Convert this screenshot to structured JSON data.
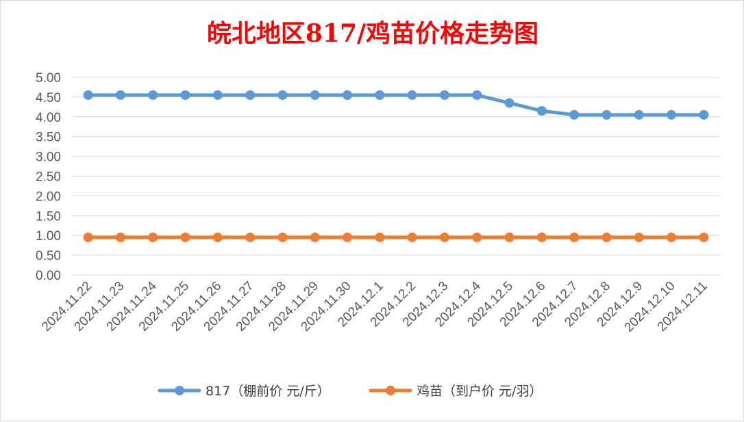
{
  "chart_data": {
    "type": "line",
    "title": "皖北地区817/鸡苗价格走势图",
    "title_color": "#ff0000",
    "categories": [
      "2024.11.22",
      "2024.11.23",
      "2024.11.24",
      "2024.11.25",
      "2024.11.26",
      "2024.11.27",
      "2024.11.28",
      "2024.11.29",
      "2024.11.30",
      "2024.12.1",
      "2024.12.2",
      "2024.12.3",
      "2024.12.4",
      "2024.12.5",
      "2024.12.6",
      "2024.12.7",
      "2024.12.8",
      "2024.12.9",
      "2024.12.10",
      "2024.12.11"
    ],
    "series": [
      {
        "name": "817（棚前价 元/斤）",
        "color": "#5b9bd5",
        "values": [
          4.55,
          4.55,
          4.55,
          4.55,
          4.55,
          4.55,
          4.55,
          4.55,
          4.55,
          4.55,
          4.55,
          4.55,
          4.55,
          4.35,
          4.15,
          4.05,
          4.05,
          4.05,
          4.05,
          4.05
        ]
      },
      {
        "name": "鸡苗（到户价 元/羽）",
        "color": "#ed7d31",
        "values": [
          0.95,
          0.95,
          0.95,
          0.95,
          0.95,
          0.95,
          0.95,
          0.95,
          0.95,
          0.95,
          0.95,
          0.95,
          0.95,
          0.95,
          0.95,
          0.95,
          0.95,
          0.95,
          0.95,
          0.95
        ]
      }
    ],
    "yticks": [
      "0.00",
      "0.50",
      "1.00",
      "1.50",
      "2.00",
      "2.50",
      "3.00",
      "3.50",
      "4.00",
      "4.50",
      "5.00"
    ],
    "ylim": [
      0,
      5
    ],
    "xlabel": "",
    "ylabel": "",
    "grid": true,
    "legend_position": "bottom"
  }
}
